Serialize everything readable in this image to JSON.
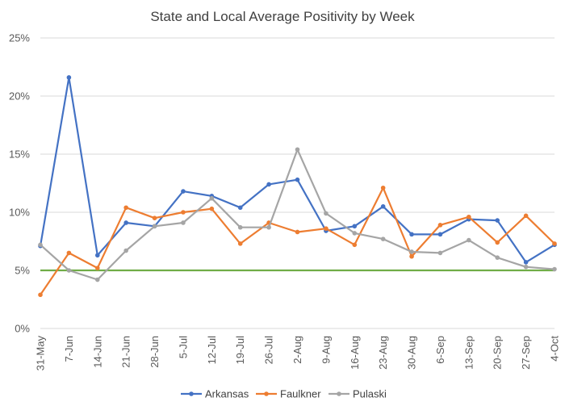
{
  "chart_data": {
    "type": "line",
    "title": "State and Local Average Positivity by Week",
    "xlabel": "",
    "ylabel": "",
    "categories": [
      "31-May",
      "7-Jun",
      "14-Jun",
      "21-Jun",
      "28-Jun",
      "5-Jul",
      "12-Jul",
      "19-Jul",
      "26-Jul",
      "2-Aug",
      "9-Aug",
      "16-Aug",
      "23-Aug",
      "30-Aug",
      "6-Sep",
      "13-Sep",
      "20-Sep",
      "27-Sep",
      "4-Oct"
    ],
    "ylim": [
      0,
      25
    ],
    "yticks": [
      0,
      5,
      10,
      15,
      20,
      25
    ],
    "ytick_labels": [
      "0%",
      "5%",
      "10%",
      "15%",
      "20%",
      "25%"
    ],
    "grid": true,
    "legend_position": "bottom",
    "series": [
      {
        "name": "Arkansas",
        "color": "#4472C4",
        "values": [
          7.1,
          21.6,
          6.3,
          9.1,
          8.8,
          11.8,
          11.4,
          10.4,
          12.4,
          12.8,
          8.4,
          8.8,
          10.5,
          8.1,
          8.1,
          9.4,
          9.3,
          5.7,
          7.2
        ]
      },
      {
        "name": "Faulkner",
        "color": "#ED7D31",
        "values": [
          2.9,
          6.5,
          5.2,
          10.4,
          9.5,
          10.0,
          10.3,
          7.3,
          9.1,
          8.3,
          8.6,
          7.2,
          12.1,
          6.2,
          8.9,
          9.6,
          7.4,
          9.7,
          7.3
        ]
      },
      {
        "name": "Pulaski",
        "color": "#A5A5A5",
        "values": [
          7.2,
          5.0,
          4.2,
          6.7,
          8.8,
          9.1,
          11.2,
          8.7,
          8.7,
          15.4,
          9.9,
          8.2,
          7.7,
          6.6,
          6.5,
          7.6,
          6.1,
          5.3,
          5.1
        ]
      }
    ],
    "reference_line": {
      "value": 5,
      "color": "#70AD47"
    }
  }
}
